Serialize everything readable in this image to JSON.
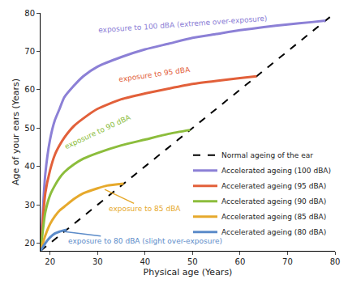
{
  "chart_data": {
    "type": "line",
    "xlabel": "Physical age (Years)",
    "ylabel": "Age of your ears (Years)",
    "xlim": [
      18,
      80
    ],
    "ylim": [
      18,
      80
    ],
    "xticks": [
      20,
      30,
      40,
      50,
      60,
      70,
      80
    ],
    "yticks": [
      20,
      30,
      40,
      50,
      60,
      70,
      80
    ],
    "grid": false,
    "legend": "lower right",
    "series": [
      {
        "name": "Normal ageing of the ear",
        "color": "#000000",
        "line_style": "dash",
        "x": [
          18,
          80
        ],
        "values": [
          18,
          80
        ]
      },
      {
        "name": "Accelerated ageing (100 dBA)",
        "color": "#8c80d6",
        "line_style": "solid",
        "x": [
          18,
          19,
          20,
          21,
          22,
          23,
          25,
          27,
          30,
          35,
          40,
          45,
          50,
          55,
          60,
          65,
          70,
          75,
          78
        ],
        "values": [
          18,
          38,
          47,
          52,
          55,
          58,
          61,
          63.5,
          66,
          68.5,
          70.5,
          72,
          73.5,
          74.5,
          75.5,
          76.3,
          77,
          77.6,
          78
        ]
      },
      {
        "name": "Accelerated ageing (95 dBA)",
        "color": "#e2603a",
        "line_style": "solid",
        "x": [
          18,
          19,
          20,
          21,
          22,
          23,
          25,
          27,
          30,
          35,
          40,
          45,
          50,
          55,
          60,
          63.5
        ],
        "values": [
          18,
          33,
          39,
          43,
          45.5,
          47.5,
          50.5,
          52.5,
          55,
          57.5,
          59,
          60.3,
          61.5,
          62.3,
          63,
          63.5
        ]
      },
      {
        "name": "Accelerated ageing (90 dBA)",
        "color": "#8cbd3c",
        "line_style": "solid",
        "x": [
          18,
          19,
          20,
          21,
          22,
          23,
          25,
          27,
          30,
          35,
          40,
          45,
          49.5
        ],
        "values": [
          18,
          28,
          32.5,
          35,
          37,
          38.5,
          40.5,
          42,
          43.5,
          45.5,
          47,
          48.5,
          49.5
        ]
      },
      {
        "name": "Accelerated ageing (85 dBA)",
        "color": "#e6a92c",
        "line_style": "solid",
        "x": [
          18,
          19,
          20,
          21,
          22,
          23,
          25,
          27,
          30,
          32,
          35.5
        ],
        "values": [
          18,
          22,
          25,
          27,
          28.5,
          29.5,
          31.5,
          33,
          34.3,
          35,
          35.5
        ]
      },
      {
        "name": "Accelerated ageing (80 dBA)",
        "color": "#5b8bc9",
        "line_style": "solid",
        "x": [
          18,
          19,
          20,
          21,
          22,
          23.5
        ],
        "values": [
          18,
          20,
          21.5,
          22.5,
          23,
          23.5
        ]
      }
    ],
    "annotations": [
      {
        "text": "exposure to 100 dBA (extreme over-exposure)",
        "x": 48,
        "y": 77,
        "color": "#8c80d6"
      },
      {
        "text": "exposure to 95 dBA",
        "x": 42,
        "y": 64,
        "color": "#e2603a"
      },
      {
        "text": "exposure to 90 dBA",
        "x": 30,
        "y": 49,
        "color": "#8cbd3c"
      },
      {
        "text": "exposure to 85 dBA",
        "x": 31.5,
        "y": 34,
        "ax": 40,
        "ay": 29,
        "color": "#e6a92c"
      },
      {
        "text": "exposure to 80 dBA (slight over-exposure)",
        "x": 23,
        "y": 23,
        "ax": 40,
        "ay": 20.5,
        "color": "#5b8bc9"
      }
    ]
  }
}
